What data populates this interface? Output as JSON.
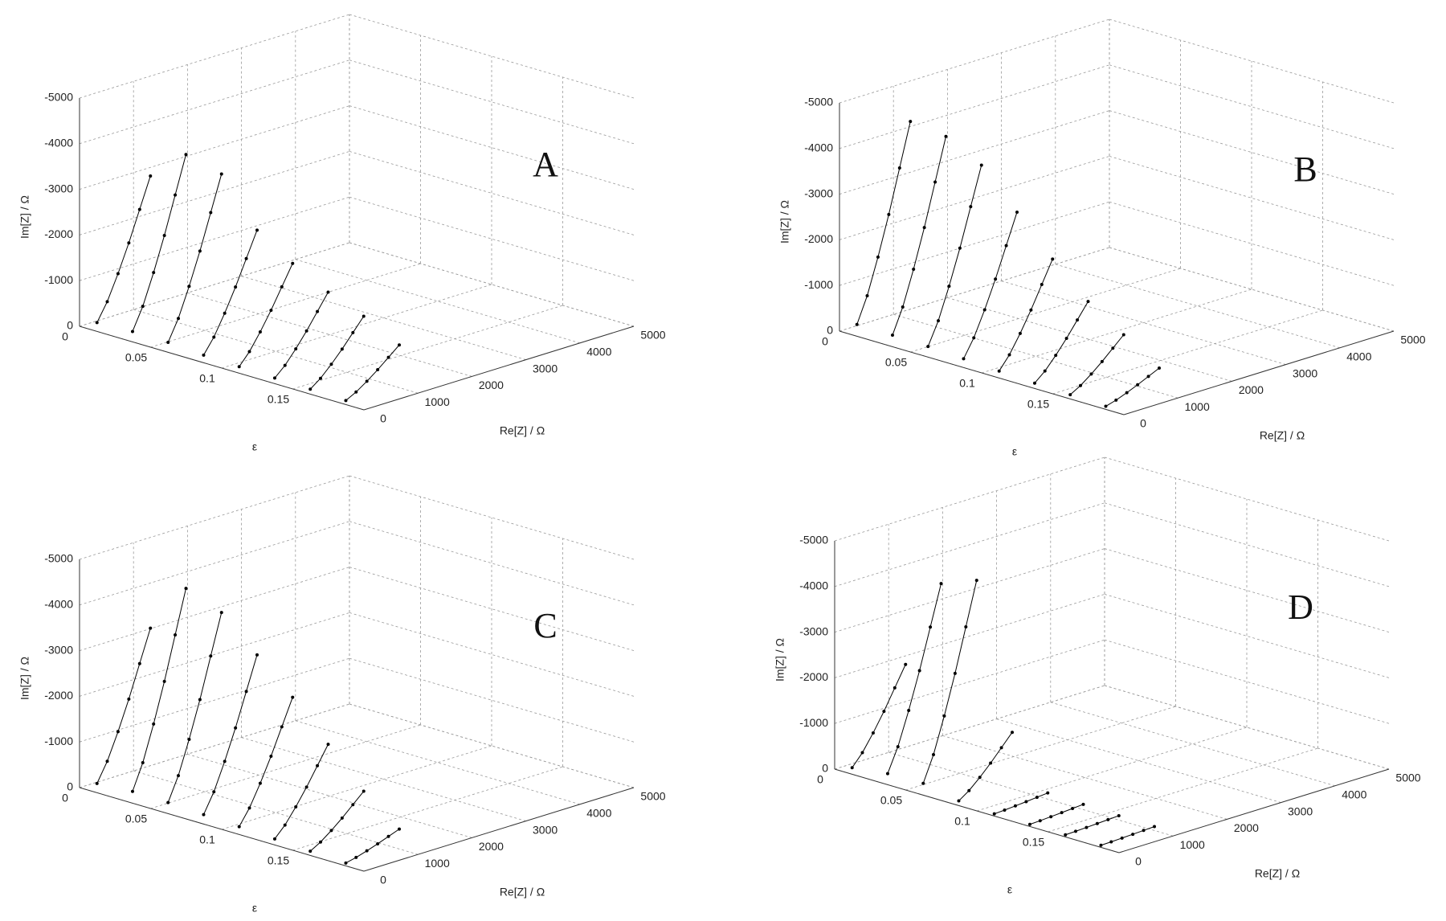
{
  "chart_data": [
    {
      "type": "line3d",
      "label": "A",
      "xlabel": "ε",
      "ylabel": "Re[Z] / Ω",
      "zlabel": "Im[Z] / Ω",
      "xlim": [
        0,
        0.2
      ],
      "xticks": [
        0,
        0.05,
        0.1,
        0.15
      ],
      "ylim": [
        0,
        5000
      ],
      "yticks": [
        0,
        1000,
        2000,
        3000,
        4000,
        5000
      ],
      "zlim": [
        0,
        -5000
      ],
      "zticks": [
        0,
        -1000,
        -2000,
        -3000,
        -4000,
        -5000
      ],
      "grid": true,
      "color": "#000000",
      "series": [
        {
          "x": 0.01,
          "y": [
            60,
            250,
            450,
            650,
            850,
            1050
          ],
          "z": [
            -150,
            -540,
            -1080,
            -1680,
            -2340,
            -3000
          ]
        },
        {
          "x": 0.035,
          "y": [
            60,
            250,
            450,
            650,
            850,
            1050
          ],
          "z": [
            -185,
            -666,
            -1332,
            -2072,
            -2886,
            -3700
          ]
        },
        {
          "x": 0.06,
          "y": [
            60,
            250,
            450,
            650,
            850,
            1050
          ],
          "z": [
            -175,
            -630,
            -1260,
            -1960,
            -2730,
            -3500
          ]
        },
        {
          "x": 0.085,
          "y": [
            60,
            250,
            450,
            650,
            850,
            1050
          ],
          "z": [
            -125,
            -450,
            -900,
            -1400,
            -1950,
            -2500
          ]
        },
        {
          "x": 0.11,
          "y": [
            60,
            250,
            450,
            650,
            850,
            1050
          ],
          "z": [
            -100,
            -360,
            -720,
            -1120,
            -1560,
            -2000
          ]
        },
        {
          "x": 0.135,
          "y": [
            60,
            250,
            450,
            650,
            850,
            1050
          ],
          "z": [
            -80,
            -288,
            -576,
            -896,
            -1248,
            -1600
          ]
        },
        {
          "x": 0.16,
          "y": [
            60,
            250,
            450,
            650,
            850,
            1050
          ],
          "z": [
            -65,
            -234,
            -468,
            -728,
            -1014,
            -1300
          ]
        },
        {
          "x": 0.185,
          "y": [
            60,
            250,
            450,
            650,
            850,
            1050
          ],
          "z": [
            -45,
            -162,
            -324,
            -504,
            -702,
            -900
          ]
        }
      ]
    },
    {
      "type": "line3d",
      "label": "B",
      "xlabel": "ε",
      "ylabel": "Re[Z] / Ω",
      "zlabel": "Im[Z] / Ω",
      "xlim": [
        0,
        0.2
      ],
      "xticks": [
        0,
        0.05,
        0.1,
        0.15
      ],
      "ylim": [
        0,
        5000
      ],
      "yticks": [
        0,
        1000,
        2000,
        3000,
        4000,
        5000
      ],
      "zlim": [
        0,
        -5000
      ],
      "zticks": [
        0,
        -1000,
        -2000,
        -3000,
        -4000,
        -5000
      ],
      "grid": true,
      "color": "#000000",
      "series": [
        {
          "x": 0.01,
          "y": [
            60,
            250,
            450,
            650,
            850,
            1050
          ],
          "z": [
            -215,
            -774,
            -1548,
            -2408,
            -3354,
            -4300
          ]
        },
        {
          "x": 0.035,
          "y": [
            60,
            250,
            450,
            650,
            850,
            1050
          ],
          "z": [
            -210,
            -756,
            -1512,
            -2352,
            -3276,
            -4200
          ]
        },
        {
          "x": 0.06,
          "y": [
            60,
            250,
            450,
            650,
            850,
            1050
          ],
          "z": [
            -190,
            -684,
            -1368,
            -2128,
            -2964,
            -3800
          ]
        },
        {
          "x": 0.085,
          "y": [
            60,
            250,
            450,
            650,
            850,
            1050
          ],
          "z": [
            -150,
            -540,
            -1080,
            -1680,
            -2340,
            -3000
          ]
        },
        {
          "x": 0.11,
          "y": [
            60,
            250,
            450,
            650,
            850,
            1050
          ],
          "z": [
            -110,
            -396,
            -792,
            -1232,
            -1716,
            -2200
          ]
        },
        {
          "x": 0.135,
          "y": [
            60,
            250,
            450,
            650,
            850,
            1050
          ],
          "z": [
            -75,
            -270,
            -540,
            -840,
            -1170,
            -1500
          ]
        },
        {
          "x": 0.16,
          "y": [
            60,
            250,
            450,
            650,
            850,
            1050
          ],
          "z": [
            -50,
            -180,
            -360,
            -560,
            -780,
            -1000
          ]
        },
        {
          "x": 0.185,
          "y": [
            60,
            250,
            450,
            650,
            850,
            1050
          ],
          "z": [
            -25,
            -90,
            -180,
            -280,
            -390,
            -500
          ]
        }
      ]
    },
    {
      "type": "line3d",
      "label": "C",
      "xlabel": "ε",
      "ylabel": "Re[Z] / Ω",
      "zlabel": "Im[Z] / Ω",
      "xlim": [
        0,
        0.2
      ],
      "xticks": [
        0,
        0.05,
        0.1,
        0.15
      ],
      "ylim": [
        0,
        5000
      ],
      "yticks": [
        0,
        1000,
        2000,
        3000,
        4000,
        5000
      ],
      "zlim": [
        0,
        -5000
      ],
      "zticks": [
        0,
        -1000,
        -2000,
        -3000,
        -4000,
        -5000
      ],
      "grid": true,
      "color": "#000000",
      "series": [
        {
          "x": 0.01,
          "y": [
            60,
            250,
            450,
            650,
            850,
            1050
          ],
          "z": [
            -160,
            -576,
            -1152,
            -1792,
            -2496,
            -3200
          ]
        },
        {
          "x": 0.035,
          "y": [
            60,
            250,
            450,
            650,
            850,
            1050
          ],
          "z": [
            -215,
            -774,
            -1548,
            -2408,
            -3354,
            -4300
          ]
        },
        {
          "x": 0.06,
          "y": [
            60,
            250,
            450,
            650,
            850,
            1050
          ],
          "z": [
            -200,
            -720,
            -1440,
            -2240,
            -3120,
            -4000
          ]
        },
        {
          "x": 0.085,
          "y": [
            60,
            250,
            450,
            650,
            850,
            1050
          ],
          "z": [
            -165,
            -594,
            -1188,
            -1848,
            -2574,
            -3300
          ]
        },
        {
          "x": 0.11,
          "y": [
            60,
            250,
            450,
            650,
            850,
            1050
          ],
          "z": [
            -130,
            -468,
            -936,
            -1456,
            -2028,
            -2600
          ]
        },
        {
          "x": 0.135,
          "y": [
            60,
            250,
            450,
            650,
            850,
            1050
          ],
          "z": [
            -90,
            -324,
            -648,
            -1008,
            -1404,
            -1800
          ]
        },
        {
          "x": 0.16,
          "y": [
            60,
            250,
            450,
            650,
            850,
            1050
          ],
          "z": [
            -50,
            -180,
            -360,
            -560,
            -780,
            -1000
          ]
        },
        {
          "x": 0.185,
          "y": [
            60,
            250,
            450,
            650,
            850,
            1050
          ],
          "z": [
            -20,
            -72,
            -144,
            -224,
            -312,
            -400
          ]
        }
      ]
    },
    {
      "type": "line3d",
      "label": "D",
      "xlabel": "ε",
      "ylabel": "Re[Z] / Ω",
      "zlabel": "Im[Z] / Ω",
      "xlim": [
        0,
        0.2
      ],
      "xticks": [
        0,
        0.05,
        0.1,
        0.15
      ],
      "ylim": [
        0,
        5000
      ],
      "yticks": [
        0,
        1000,
        2000,
        3000,
        4000,
        5000
      ],
      "zlim": [
        0,
        -5000
      ],
      "zticks": [
        0,
        -1000,
        -2000,
        -3000,
        -4000,
        -5000
      ],
      "grid": true,
      "color": "#000000",
      "series": [
        {
          "x": 0.01,
          "y": [
            60,
            250,
            450,
            650,
            850,
            1050
          ],
          "z": [
            -100,
            -360,
            -720,
            -1120,
            -1560,
            -2000
          ]
        },
        {
          "x": 0.035,
          "y": [
            60,
            250,
            450,
            650,
            850,
            1050
          ],
          "z": [
            -200,
            -720,
            -1440,
            -2240,
            -3120,
            -4000
          ]
        },
        {
          "x": 0.06,
          "y": [
            60,
            250,
            450,
            650,
            850,
            1050
          ],
          "z": [
            -215,
            -774,
            -1548,
            -2408,
            -3354,
            -4300
          ]
        },
        {
          "x": 0.085,
          "y": [
            60,
            250,
            450,
            650,
            850,
            1050
          ],
          "z": [
            -60,
            -216,
            -432,
            -672,
            -936,
            -1200
          ]
        },
        {
          "x": 0.11,
          "y": [
            60,
            250,
            450,
            650,
            850,
            1050
          ],
          "z": [
            -5,
            -18,
            -36,
            -56,
            -78,
            -100
          ]
        },
        {
          "x": 0.135,
          "y": [
            60,
            250,
            450,
            650,
            850,
            1050
          ],
          "z": [
            -4,
            -14,
            -29,
            -45,
            -62,
            -80
          ]
        },
        {
          "x": 0.16,
          "y": [
            60,
            250,
            450,
            650,
            850,
            1050
          ],
          "z": [
            -3,
            -11,
            -22,
            -34,
            -47,
            -60
          ]
        },
        {
          "x": 0.185,
          "y": [
            60,
            250,
            450,
            650,
            850,
            1050
          ],
          "z": [
            -3,
            -9,
            -18,
            -28,
            -39,
            -50
          ]
        }
      ]
    }
  ]
}
